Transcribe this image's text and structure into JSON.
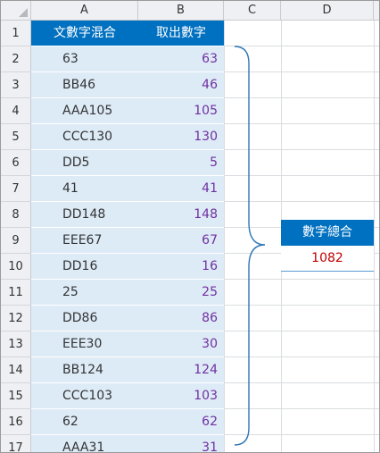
{
  "columns": [
    "A",
    "B",
    "C",
    "D"
  ],
  "rows": [
    "1",
    "2",
    "3",
    "4",
    "5",
    "6",
    "7",
    "8",
    "9",
    "10",
    "11",
    "12",
    "13",
    "14",
    "15",
    "16",
    "17"
  ],
  "table": {
    "header_a": "文數字混合",
    "header_b": "取出數字",
    "mixed": [
      "63",
      "BB46",
      "AAA105",
      "CCC130",
      "DD5",
      "41",
      "DD148",
      "EEE67",
      "DD16",
      "25",
      "DD86",
      "EEE30",
      "BB124",
      "CCC103",
      "62",
      "AAA31"
    ],
    "numbers": [
      "63",
      "46",
      "105",
      "130",
      "5",
      "41",
      "148",
      "67",
      "16",
      "25",
      "86",
      "30",
      "124",
      "103",
      "62",
      "31"
    ]
  },
  "summary": {
    "header": "數字總合",
    "value": "1082"
  },
  "colors": {
    "header_bg": "#0070c0",
    "cell_bg": "#ddebf7",
    "number_text": "#7030a0",
    "total_text": "#c00000",
    "brace": "#2e75b6"
  }
}
